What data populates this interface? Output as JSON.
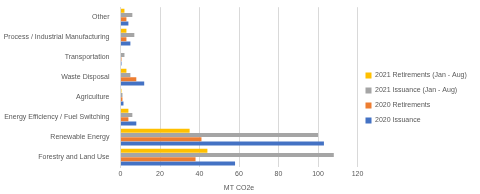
{
  "chart_data": {
    "type": "bar",
    "orientation": "horizontal",
    "categories": [
      "Other",
      "Chemical Process / Industrial Manufacturing",
      "Transportation",
      "Waste Disposal",
      "Agriculture",
      "Energy Efficiency / Fuel Switching",
      "Renewable Energy",
      "Forestry and Land Use"
    ],
    "series": [
      {
        "name": "2021 Retirements (Jan - Aug)",
        "color": "#ffc000",
        "values": [
          2,
          3,
          0,
          3,
          0.5,
          4,
          35,
          44
        ]
      },
      {
        "name": "2021 Issuance (Jan - Aug)",
        "color": "#a5a5a5",
        "values": [
          6,
          7,
          2,
          5,
          1,
          6,
          100,
          108
        ]
      },
      {
        "name": "2020 Retirements",
        "color": "#ed7d31",
        "values": [
          3,
          3,
          0.5,
          8,
          1,
          4,
          41,
          38
        ]
      },
      {
        "name": "2020 Issuance",
        "color": "#4472c4",
        "values": [
          4,
          5,
          0.5,
          12,
          1.5,
          8,
          103,
          58
        ]
      }
    ],
    "x_label": "MT CO2e",
    "xlim": [
      0,
      120
    ],
    "xticks": [
      0,
      20,
      40,
      60,
      80,
      100,
      120
    ],
    "grid": true,
    "legend": "right"
  }
}
